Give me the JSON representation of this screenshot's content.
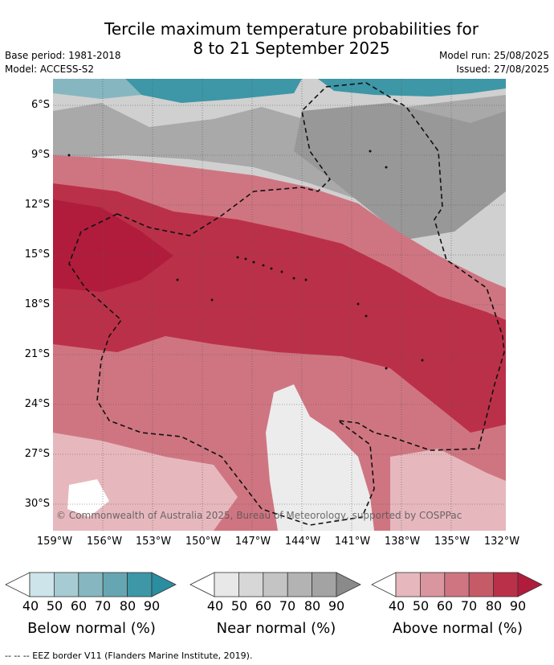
{
  "title_line1": "Tercile maximum temperature probabilities for",
  "title_line2": "8 to 21 September 2025",
  "base_period": "Base period: 1981-2018",
  "model": "Model: ACCESS-S2",
  "model_run": "Model run: 25/08/2025",
  "issued": "Issued: 27/08/2025",
  "copyright": "© Commonwealth of Australia 2025, Bureau of Meteorology, supported by COSPPac",
  "footer": "--  --  -- EEZ border V11 (Flanders Marine Institute, 2019).",
  "lat_labels": [
    "6°S",
    "9°S",
    "12°S",
    "15°S",
    "18°S",
    "21°S",
    "24°S",
    "27°S",
    "30°S"
  ],
  "lon_labels": [
    "159°W",
    "156°W",
    "153°W",
    "150°W",
    "147°W",
    "144°W",
    "141°W",
    "138°W",
    "135°W",
    "132°W"
  ],
  "colorbars": [
    {
      "title": "Below normal (%)",
      "ticks": [
        "40",
        "50",
        "60",
        "70",
        "80",
        "90"
      ],
      "colors": [
        "#cce4ea",
        "#a6cbd3",
        "#86b7c1",
        "#66a6b3",
        "#3d97a7",
        "#2b8da0"
      ]
    },
    {
      "title": "Near normal (%)",
      "ticks": [
        "40",
        "50",
        "60",
        "70",
        "80",
        "90"
      ],
      "colors": [
        "#e8e8e8",
        "#d7d7d7",
        "#c4c4c4",
        "#b3b3b3",
        "#a3a3a3",
        "#8a8a8a"
      ]
    },
    {
      "title": "Above normal (%)",
      "ticks": [
        "40",
        "50",
        "60",
        "70",
        "80",
        "90"
      ],
      "colors": [
        "#e6b8bd",
        "#d9969f",
        "#cf7581",
        "#c65b68",
        "#bb3049",
        "#b11c3c"
      ]
    }
  ]
}
